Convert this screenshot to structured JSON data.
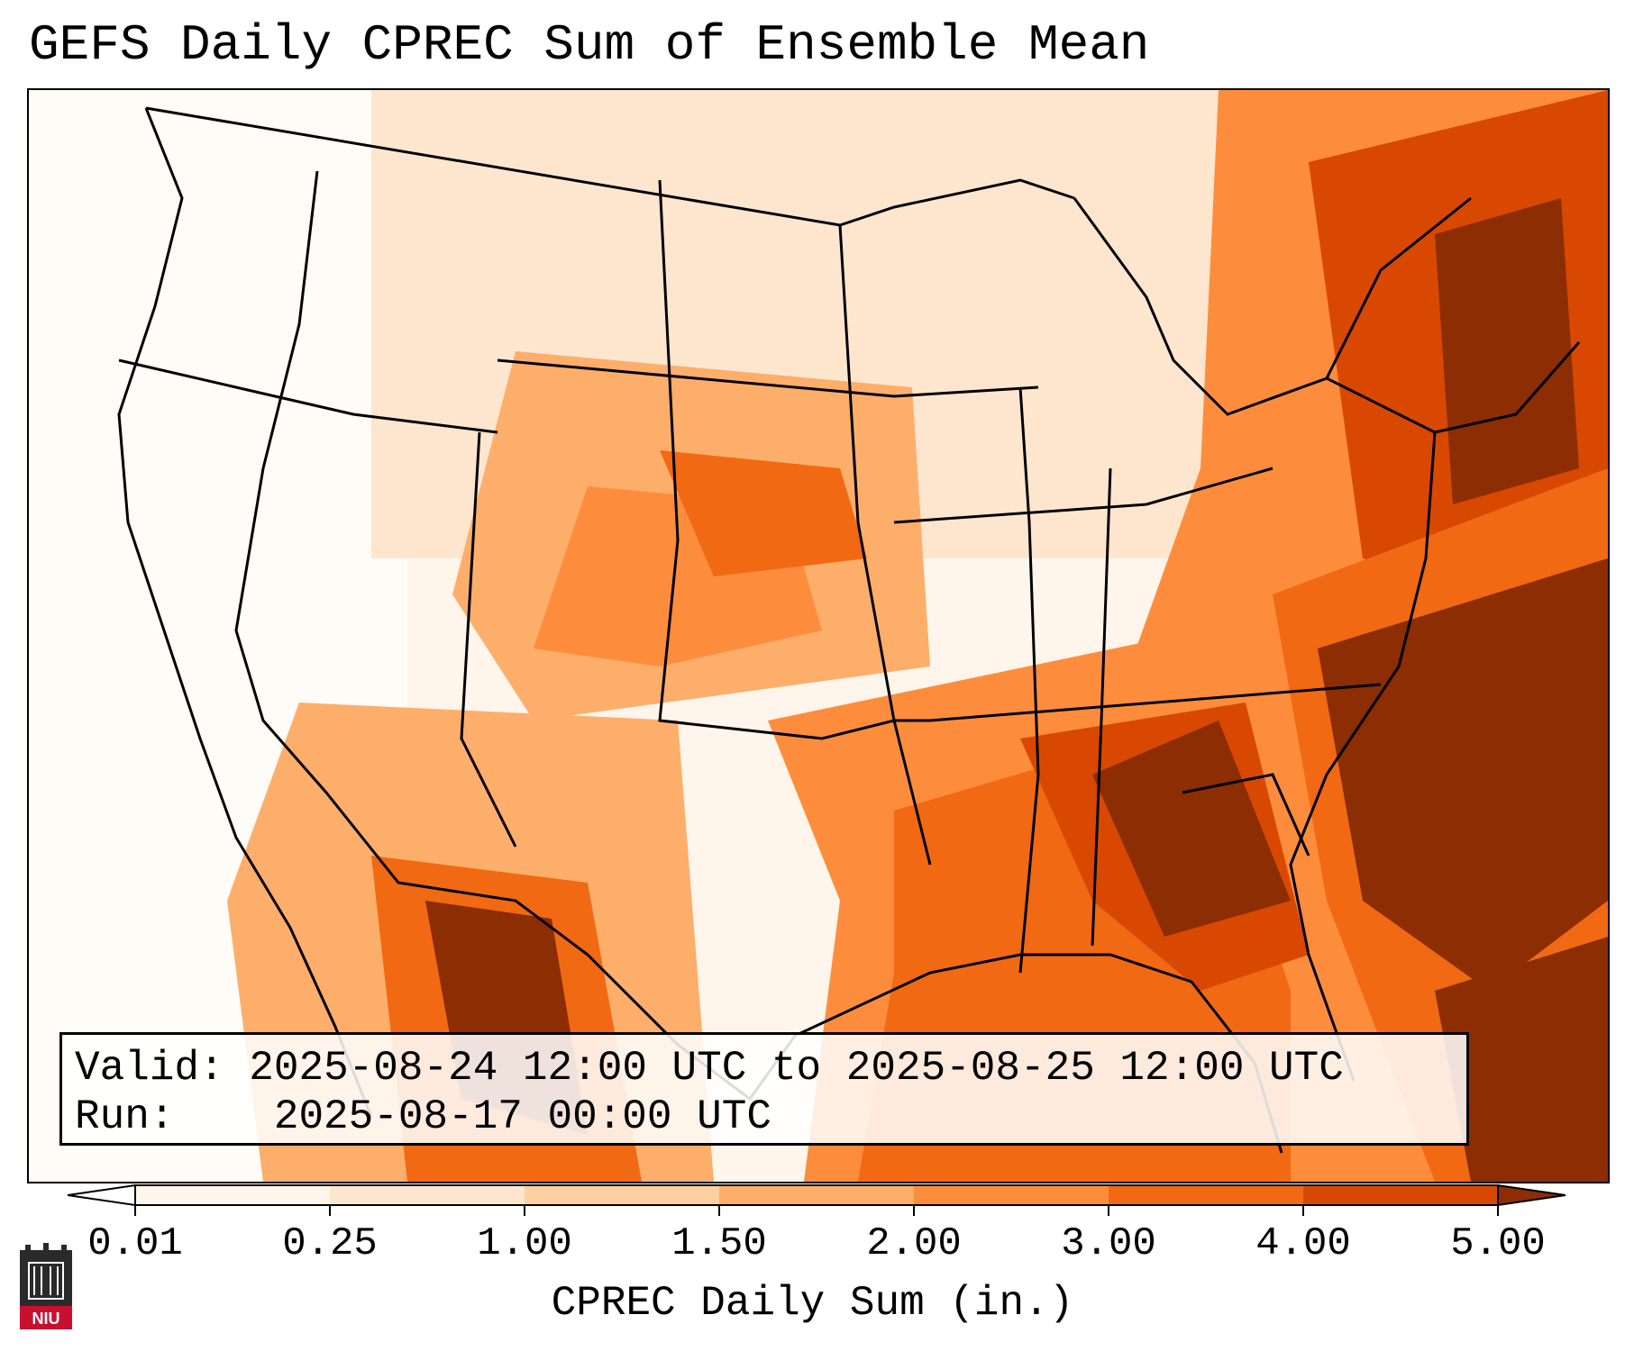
{
  "title": "GEFS Daily CPREC Sum of Ensemble Mean",
  "info": {
    "valid_label": "Valid:",
    "valid_value": "2025-08-24 12:00 UTC to 2025-08-25 12:00 UTC",
    "run_label": "Run:",
    "run_value": "2025-08-17 00:00 UTC"
  },
  "colorbar": {
    "label": "CPREC Daily Sum (in.)",
    "ticks": [
      "0.01",
      "0.25",
      "1.00",
      "1.50",
      "2.00",
      "3.00",
      "4.00",
      "5.00"
    ],
    "colors": [
      "#fff5eb",
      "#fee6ce",
      "#fdd0a2",
      "#fdae6b",
      "#fd8d3c",
      "#f16913",
      "#d94801",
      "#8c2d04"
    ],
    "under_color": "#ffffff",
    "over_color": "#8c2d04"
  },
  "logo": {
    "text": "NIU"
  }
}
